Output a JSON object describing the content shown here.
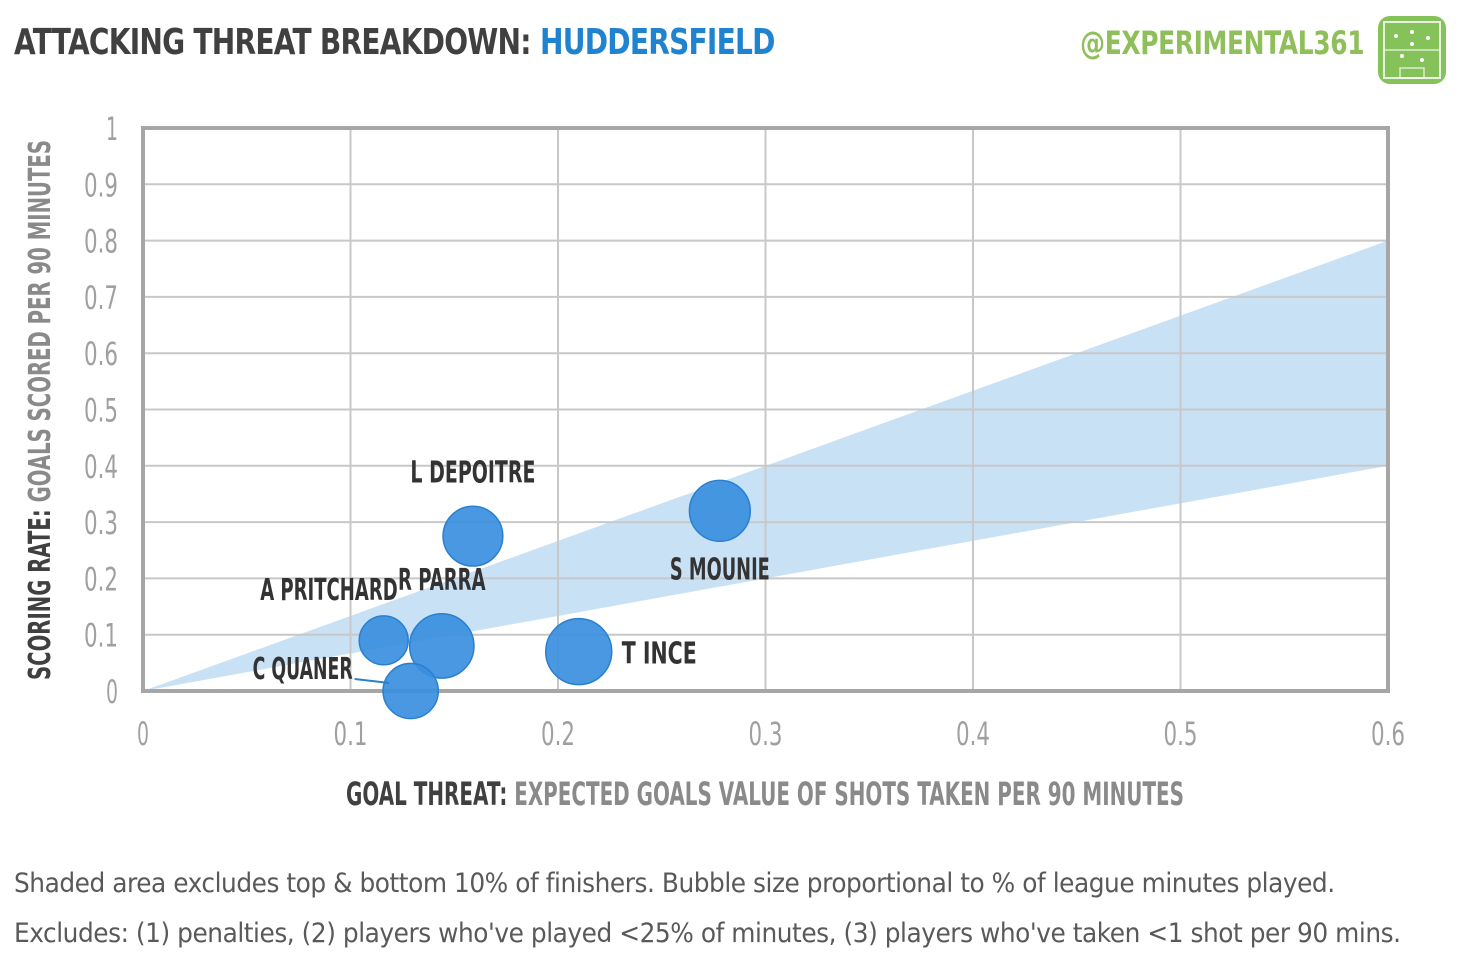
{
  "header": {
    "title_prefix": "ATTACKING THREAT BREAKDOWN:",
    "title_team": "HUDDERSFIELD",
    "handle": "@EXPERIMENTAL361",
    "logo_icon": "pitch-logo-icon"
  },
  "colors": {
    "bubble": "#3a8fde",
    "bubble_stroke": "#2a7fd0",
    "band": "#c9e1f5",
    "team": "#1f83d0",
    "handle": "#8fbf5a",
    "grid": "#c8c8c8",
    "frame": "#a6a6a6"
  },
  "chart_data": {
    "type": "scatter",
    "subtype": "bubble",
    "xlabel_bold": "GOAL THREAT:",
    "xlabel_rest": "EXPECTED GOALS VALUE OF SHOTS TAKEN PER 90 MINUTES",
    "ylabel_bold": "SCORING RATE:",
    "ylabel_rest": "GOALS SCORED PER 90 MINUTES",
    "xlim": [
      0,
      0.6
    ],
    "ylim": [
      0,
      1
    ],
    "x_ticks": [
      "0",
      "0.1",
      "0.2",
      "0.3",
      "0.4",
      "0.5",
      "0.6"
    ],
    "y_ticks": [
      "0",
      "0.1",
      "0.2",
      "0.3",
      "0.4",
      "0.5",
      "0.6",
      "0.7",
      "0.8",
      "0.9",
      "1"
    ],
    "grid": true,
    "band": {
      "x": [
        0,
        0.6
      ],
      "upper": [
        0,
        0.8
      ],
      "lower": [
        0,
        0.4
      ]
    },
    "points": [
      {
        "name": "L DEPOITRE",
        "x": 0.159,
        "y": 0.275,
        "size": 0.82,
        "label_pos": "top"
      },
      {
        "name": "S MOUNIE",
        "x": 0.278,
        "y": 0.32,
        "size": 0.85,
        "label_pos": "bottom"
      },
      {
        "name": "A PRITCHARD",
        "x": 0.116,
        "y": 0.09,
        "size": 0.55,
        "label_pos": "top-left"
      },
      {
        "name": "R PARRA",
        "x": 0.144,
        "y": 0.08,
        "size": 0.95,
        "label_pos": "top"
      },
      {
        "name": "T INCE",
        "x": 0.21,
        "y": 0.07,
        "size": 1.0,
        "label_pos": "right"
      },
      {
        "name": "C QUANER",
        "x": 0.129,
        "y": 0.0,
        "size": 0.7,
        "label_pos": "left-leader"
      }
    ]
  },
  "footnotes": {
    "line1": "Shaded area excludes top & bottom  10% of finishers. Bubble size proportional to % of league minutes played.",
    "line2": "Excludes: (1) penalties, (2) players who've played <25% of minutes, (3) players who've taken <1 shot per 90 mins."
  }
}
